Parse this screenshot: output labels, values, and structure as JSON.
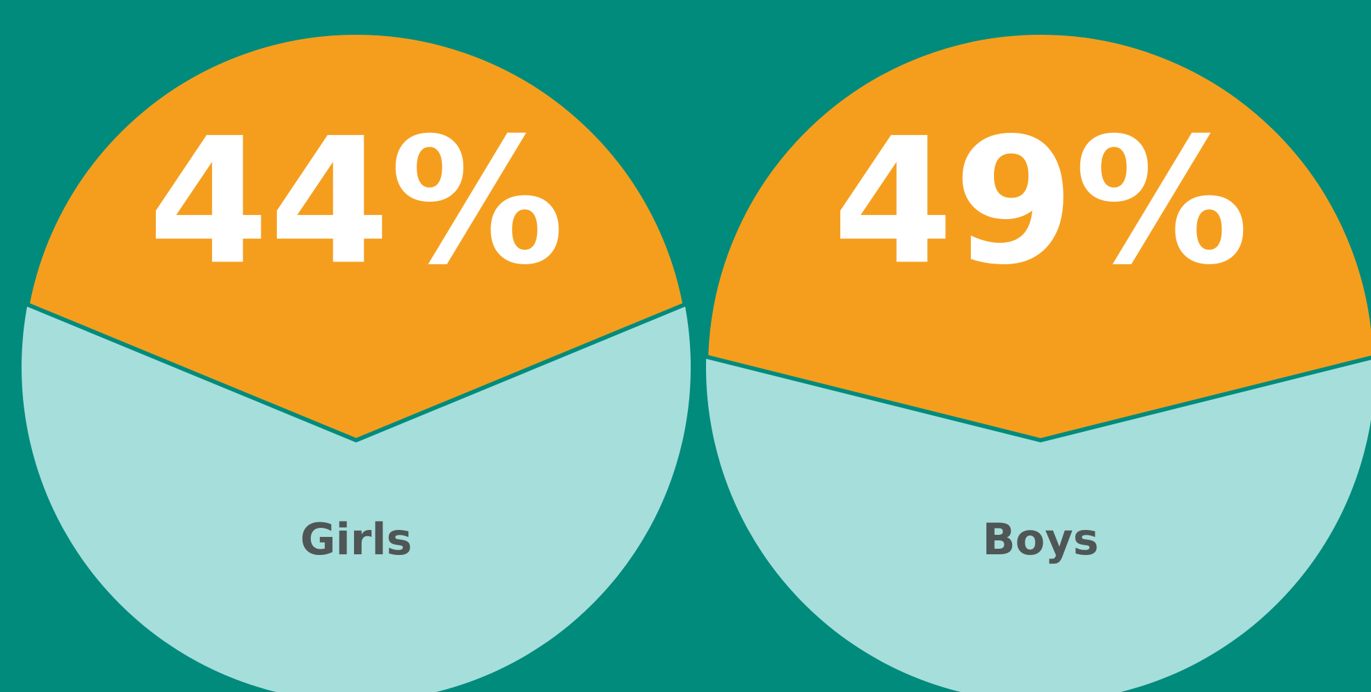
{
  "chart_data": [
    {
      "type": "pie",
      "title": "Girls",
      "values": [
        44
      ],
      "value_labels": [
        "44%"
      ],
      "color": "#f59e1e",
      "rest_color": "#a6dedb"
    },
    {
      "type": "pie",
      "title": "Boys",
      "values": [
        49
      ],
      "value_labels": [
        "49%"
      ],
      "color": "#f59e1e",
      "rest_color": "#a6dedb"
    }
  ]
}
